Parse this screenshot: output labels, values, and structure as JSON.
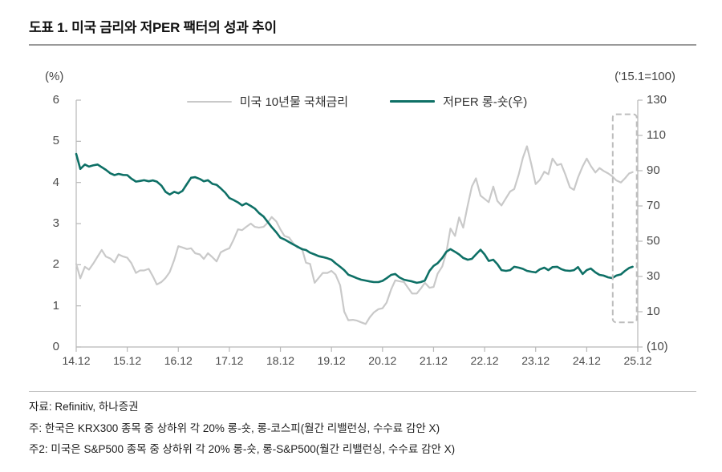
{
  "header": {
    "title": "도표 1. 미국 금리와 저PER 팩터의 성과 추이"
  },
  "footer": {
    "source": "자료: Refinitiv, 하나증권",
    "note1": "주: 한국은 KRX300 종목 중 상하위 각 20% 롱-숏, 롱-코스피(월간 리밸런싱, 수수료 감안 X)",
    "note2": "주2: 미국은 S&P500 종목 중 상하위 각 20% 롱-숏, 롱-S&P500(월간 리밸런싱, 수수료 감안 X)"
  },
  "chart_data": {
    "type": "line",
    "title": "도표 1. 미국 금리와 저PER 팩터의 성과 추이",
    "grid": false,
    "legend_position": "top-center",
    "left_axis": {
      "unit_label": "(%)",
      "min": 0,
      "max": 6,
      "ticks": [
        {
          "v": 6,
          "label": "6"
        },
        {
          "v": 5,
          "label": "5"
        },
        {
          "v": 4,
          "label": "4"
        },
        {
          "v": 3,
          "label": "3"
        },
        {
          "v": 2,
          "label": "2"
        },
        {
          "v": 1,
          "label": "1"
        },
        {
          "v": 0,
          "label": "0"
        }
      ]
    },
    "right_axis": {
      "unit_label": "('15.1=100)",
      "min": -10,
      "max": 130,
      "ticks": [
        {
          "v": 130,
          "label": "130"
        },
        {
          "v": 110,
          "label": "110"
        },
        {
          "v": 90,
          "label": "90"
        },
        {
          "v": 70,
          "label": "70"
        },
        {
          "v": 50,
          "label": "50"
        },
        {
          "v": 30,
          "label": "30"
        },
        {
          "v": 10,
          "label": "10"
        },
        {
          "v": -10,
          "label": "(10)"
        }
      ]
    },
    "x_axis": {
      "min": 0,
      "max": 11,
      "ticks": [
        {
          "t": 0,
          "label": "14.12"
        },
        {
          "t": 1,
          "label": "15.12"
        },
        {
          "t": 2,
          "label": "16.12"
        },
        {
          "t": 3,
          "label": "17.12"
        },
        {
          "t": 4,
          "label": "18.12"
        },
        {
          "t": 5,
          "label": "19.12"
        },
        {
          "t": 6,
          "label": "20.12"
        },
        {
          "t": 7,
          "label": "21.12"
        },
        {
          "t": 8,
          "label": "22.12"
        },
        {
          "t": 9,
          "label": "23.12"
        },
        {
          "t": 10,
          "label": "24.12"
        },
        {
          "t": 11,
          "label": "25.12"
        }
      ]
    },
    "series": [
      {
        "name": "미국 10년물 국채금리",
        "slug": "line-us-10y-yield",
        "axis": "left",
        "color": "#c9c9c9",
        "width": 2.2,
        "points": [
          [
            0,
            2.02
          ],
          [
            0.08,
            1.67
          ],
          [
            0.17,
            1.95
          ],
          [
            0.25,
            1.88
          ],
          [
            0.33,
            2.02
          ],
          [
            0.42,
            2.2
          ],
          [
            0.5,
            2.36
          ],
          [
            0.58,
            2.2
          ],
          [
            0.67,
            2.15
          ],
          [
            0.75,
            2.06
          ],
          [
            0.83,
            2.25
          ],
          [
            0.92,
            2.2
          ],
          [
            1,
            2.17
          ],
          [
            1.08,
            2.04
          ],
          [
            1.17,
            1.8
          ],
          [
            1.25,
            1.86
          ],
          [
            1.33,
            1.86
          ],
          [
            1.42,
            1.9
          ],
          [
            1.5,
            1.72
          ],
          [
            1.58,
            1.52
          ],
          [
            1.67,
            1.58
          ],
          [
            1.75,
            1.68
          ],
          [
            1.83,
            1.82
          ],
          [
            1.92,
            2.12
          ],
          [
            2,
            2.45
          ],
          [
            2.08,
            2.42
          ],
          [
            2.17,
            2.38
          ],
          [
            2.25,
            2.4
          ],
          [
            2.33,
            2.28
          ],
          [
            2.42,
            2.25
          ],
          [
            2.5,
            2.14
          ],
          [
            2.58,
            2.28
          ],
          [
            2.67,
            2.18
          ],
          [
            2.75,
            2.08
          ],
          [
            2.83,
            2.3
          ],
          [
            2.92,
            2.36
          ],
          [
            3,
            2.4
          ],
          [
            3.08,
            2.6
          ],
          [
            3.17,
            2.86
          ],
          [
            3.25,
            2.84
          ],
          [
            3.33,
            2.92
          ],
          [
            3.42,
            3
          ],
          [
            3.5,
            2.92
          ],
          [
            3.58,
            2.9
          ],
          [
            3.67,
            2.92
          ],
          [
            3.75,
            3.02
          ],
          [
            3.83,
            3.16
          ],
          [
            3.92,
            3.05
          ],
          [
            4,
            2.86
          ],
          [
            4.08,
            2.7
          ],
          [
            4.17,
            2.66
          ],
          [
            4.25,
            2.52
          ],
          [
            4.33,
            2.42
          ],
          [
            4.42,
            2.4
          ],
          [
            4.5,
            2.05
          ],
          [
            4.58,
            2.02
          ],
          [
            4.67,
            1.56
          ],
          [
            4.75,
            1.68
          ],
          [
            4.83,
            1.8
          ],
          [
            4.92,
            1.8
          ],
          [
            5,
            1.85
          ],
          [
            5.08,
            1.76
          ],
          [
            5.17,
            1.5
          ],
          [
            5.25,
            0.86
          ],
          [
            5.33,
            0.65
          ],
          [
            5.42,
            0.66
          ],
          [
            5.5,
            0.64
          ],
          [
            5.58,
            0.6
          ],
          [
            5.67,
            0.56
          ],
          [
            5.75,
            0.72
          ],
          [
            5.83,
            0.84
          ],
          [
            5.92,
            0.92
          ],
          [
            6,
            0.94
          ],
          [
            6.08,
            1.08
          ],
          [
            6.17,
            1.4
          ],
          [
            6.25,
            1.62
          ],
          [
            6.33,
            1.6
          ],
          [
            6.42,
            1.58
          ],
          [
            6.5,
            1.44
          ],
          [
            6.58,
            1.3
          ],
          [
            6.67,
            1.3
          ],
          [
            6.75,
            1.42
          ],
          [
            6.83,
            1.56
          ],
          [
            6.92,
            1.44
          ],
          [
            7,
            1.46
          ],
          [
            7.08,
            1.78
          ],
          [
            7.17,
            1.96
          ],
          [
            7.25,
            2.3
          ],
          [
            7.33,
            2.88
          ],
          [
            7.42,
            2.7
          ],
          [
            7.5,
            3.15
          ],
          [
            7.58,
            2.9
          ],
          [
            7.67,
            3.45
          ],
          [
            7.75,
            3.9
          ],
          [
            7.83,
            4.1
          ],
          [
            7.92,
            3.68
          ],
          [
            8,
            3.6
          ],
          [
            8.08,
            3.52
          ],
          [
            8.17,
            3.9
          ],
          [
            8.25,
            3.55
          ],
          [
            8.33,
            3.44
          ],
          [
            8.42,
            3.62
          ],
          [
            8.5,
            3.78
          ],
          [
            8.58,
            3.84
          ],
          [
            8.67,
            4.2
          ],
          [
            8.75,
            4.6
          ],
          [
            8.83,
            4.88
          ],
          [
            8.92,
            4.42
          ],
          [
            9,
            3.96
          ],
          [
            9.08,
            4.06
          ],
          [
            9.17,
            4.26
          ],
          [
            9.25,
            4.2
          ],
          [
            9.33,
            4.58
          ],
          [
            9.42,
            4.42
          ],
          [
            9.5,
            4.45
          ],
          [
            9.58,
            4.2
          ],
          [
            9.67,
            3.88
          ],
          [
            9.75,
            3.82
          ],
          [
            9.83,
            4.12
          ],
          [
            9.92,
            4.39
          ],
          [
            10,
            4.58
          ],
          [
            10.08,
            4.4
          ],
          [
            10.17,
            4.24
          ],
          [
            10.25,
            4.35
          ],
          [
            10.33,
            4.28
          ],
          [
            10.42,
            4.22
          ],
          [
            10.5,
            4.15
          ],
          [
            10.58,
            4.05
          ],
          [
            10.67,
            4
          ],
          [
            10.75,
            4.1
          ],
          [
            10.83,
            4.22
          ],
          [
            10.9,
            4.25
          ]
        ]
      },
      {
        "name": "저PER 롱-숏(우)",
        "slug": "line-low-per-long-short",
        "axis": "right",
        "color": "#0e7066",
        "width": 2.6,
        "points": [
          [
            0,
            99.5
          ],
          [
            0.08,
            91
          ],
          [
            0.17,
            93.5
          ],
          [
            0.25,
            92.3
          ],
          [
            0.33,
            93
          ],
          [
            0.42,
            93.5
          ],
          [
            0.5,
            92
          ],
          [
            0.58,
            90.5
          ],
          [
            0.67,
            88.5
          ],
          [
            0.75,
            87.5
          ],
          [
            0.83,
            88.2
          ],
          [
            0.92,
            87.6
          ],
          [
            1,
            87.5
          ],
          [
            1.08,
            85.5
          ],
          [
            1.17,
            83.8
          ],
          [
            1.25,
            84.2
          ],
          [
            1.33,
            84.6
          ],
          [
            1.42,
            84
          ],
          [
            1.5,
            84.5
          ],
          [
            1.58,
            83.8
          ],
          [
            1.67,
            81.5
          ],
          [
            1.75,
            78
          ],
          [
            1.83,
            76.5
          ],
          [
            1.92,
            78
          ],
          [
            2,
            77.2
          ],
          [
            2.08,
            78.5
          ],
          [
            2.17,
            82.5
          ],
          [
            2.25,
            86
          ],
          [
            2.33,
            86.3
          ],
          [
            2.42,
            85.3
          ],
          [
            2.5,
            84
          ],
          [
            2.58,
            84.6
          ],
          [
            2.67,
            82.5
          ],
          [
            2.75,
            82
          ],
          [
            2.83,
            80
          ],
          [
            2.92,
            77.5
          ],
          [
            3,
            74.5
          ],
          [
            3.08,
            73.4
          ],
          [
            3.17,
            72
          ],
          [
            3.25,
            70.3
          ],
          [
            3.33,
            71.5
          ],
          [
            3.42,
            70
          ],
          [
            3.5,
            68.5
          ],
          [
            3.58,
            66
          ],
          [
            3.67,
            64
          ],
          [
            3.75,
            61
          ],
          [
            3.83,
            58
          ],
          [
            3.92,
            55
          ],
          [
            4,
            52
          ],
          [
            4.08,
            51
          ],
          [
            4.17,
            49.5
          ],
          [
            4.25,
            48.2
          ],
          [
            4.33,
            47
          ],
          [
            4.42,
            45.5
          ],
          [
            4.5,
            45
          ],
          [
            4.58,
            43.5
          ],
          [
            4.67,
            42.5
          ],
          [
            4.75,
            41.5
          ],
          [
            4.83,
            41
          ],
          [
            4.92,
            40.3
          ],
          [
            5,
            39.5
          ],
          [
            5.08,
            37.5
          ],
          [
            5.17,
            35.5
          ],
          [
            5.25,
            33.6
          ],
          [
            5.33,
            31
          ],
          [
            5.42,
            30
          ],
          [
            5.5,
            29
          ],
          [
            5.58,
            28.2
          ],
          [
            5.67,
            27.7
          ],
          [
            5.75,
            27.2
          ],
          [
            5.83,
            26.8
          ],
          [
            5.92,
            26.8
          ],
          [
            6,
            27.5
          ],
          [
            6.08,
            29
          ],
          [
            6.17,
            30.9
          ],
          [
            6.25,
            31.4
          ],
          [
            6.33,
            29.5
          ],
          [
            6.42,
            28.2
          ],
          [
            6.5,
            27.7
          ],
          [
            6.58,
            27.2
          ],
          [
            6.67,
            26.4
          ],
          [
            6.75,
            26.8
          ],
          [
            6.83,
            27.7
          ],
          [
            6.92,
            33.2
          ],
          [
            7,
            36
          ],
          [
            7.08,
            37.5
          ],
          [
            7.17,
            40.5
          ],
          [
            7.25,
            44
          ],
          [
            7.33,
            45.5
          ],
          [
            7.42,
            44
          ],
          [
            7.5,
            42.5
          ],
          [
            7.58,
            40.5
          ],
          [
            7.67,
            39.5
          ],
          [
            7.75,
            40
          ],
          [
            7.83,
            42.5
          ],
          [
            7.92,
            45.2
          ],
          [
            8,
            42.5
          ],
          [
            8.08,
            38.8
          ],
          [
            8.17,
            39.5
          ],
          [
            8.25,
            37
          ],
          [
            8.33,
            33.6
          ],
          [
            8.42,
            33.2
          ],
          [
            8.5,
            33.6
          ],
          [
            8.58,
            35.5
          ],
          [
            8.67,
            35
          ],
          [
            8.75,
            34.3
          ],
          [
            8.83,
            33.2
          ],
          [
            8.92,
            32.7
          ],
          [
            9,
            32.3
          ],
          [
            9.08,
            34
          ],
          [
            9.17,
            35
          ],
          [
            9.25,
            33.6
          ],
          [
            9.33,
            35.3
          ],
          [
            9.42,
            35.5
          ],
          [
            9.5,
            34.2
          ],
          [
            9.58,
            33.4
          ],
          [
            9.67,
            33.2
          ],
          [
            9.75,
            33.6
          ],
          [
            9.83,
            35.3
          ],
          [
            9.92,
            31.4
          ],
          [
            10,
            33.6
          ],
          [
            10.08,
            34.5
          ],
          [
            10.17,
            32.3
          ],
          [
            10.25,
            30.9
          ],
          [
            10.33,
            30.5
          ],
          [
            10.42,
            29.5
          ],
          [
            10.5,
            29.1
          ],
          [
            10.58,
            30.5
          ],
          [
            10.67,
            31.2
          ],
          [
            10.75,
            33.2
          ],
          [
            10.83,
            34.8
          ],
          [
            10.9,
            35.5
          ]
        ]
      }
    ],
    "highlight_box": {
      "t0": 10.51,
      "t1": 10.98,
      "v0": 4,
      "v1": 122,
      "axis": "right",
      "style": "dashed",
      "color": "#bdbdbd"
    }
  }
}
